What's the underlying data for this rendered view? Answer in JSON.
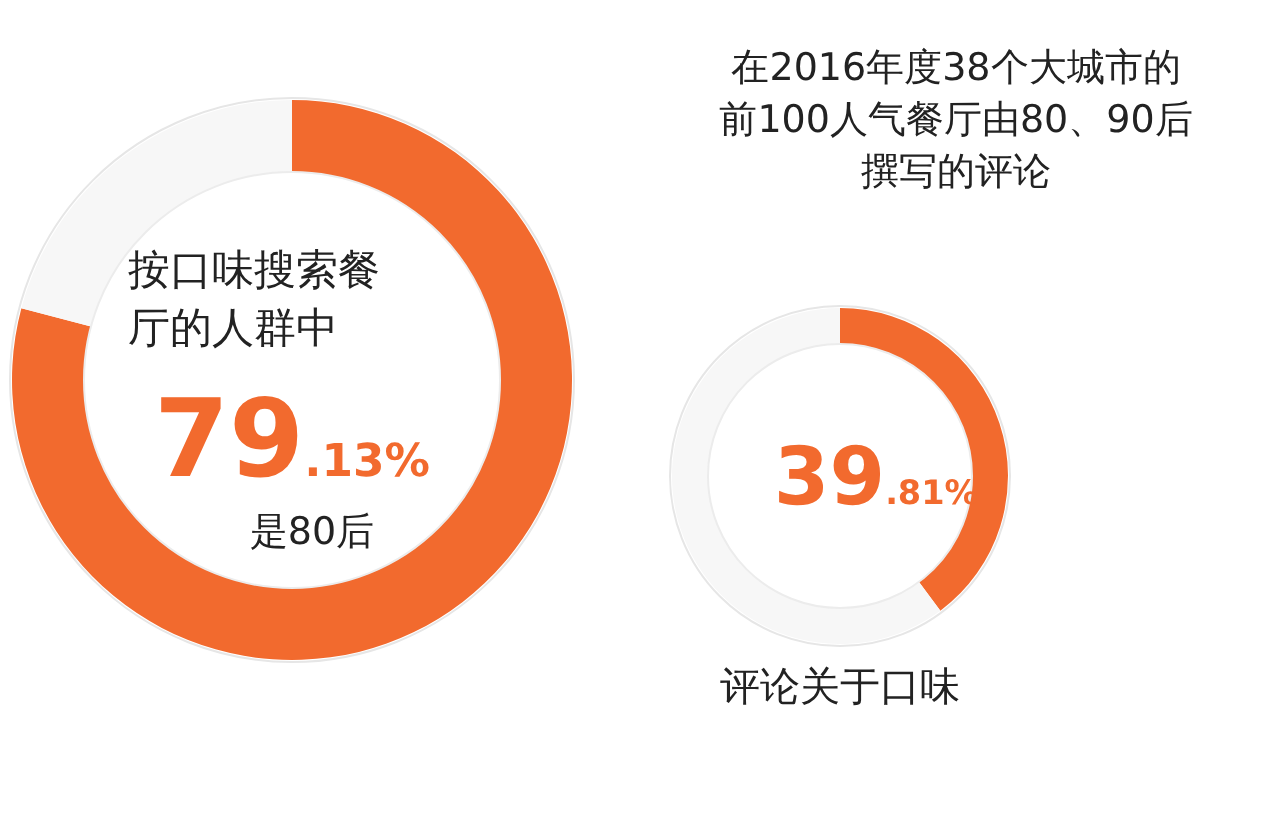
{
  "chart_data": [
    {
      "type": "donut",
      "title": "按口味搜索餐厅的人群中",
      "categories": [
        null,
        null
      ],
      "values": [
        79.13,
        20.87
      ],
      "colors": [
        "#f26a2e",
        "#f7f7f7"
      ],
      "value_labels": [
        "79.13%",
        null
      ],
      "annotations": [
        "是80后"
      ]
    },
    {
      "type": "donut",
      "title": "在2016年度38个大城市的前100人气餐厅由80、90后撰写的评论",
      "categories": [
        null,
        null
      ],
      "values": [
        39.81,
        60.19
      ],
      "colors": [
        "#f26a2e",
        "#f7f7f7"
      ],
      "value_labels": [
        "39.81%",
        null
      ],
      "annotations": [
        "评论关于口味"
      ]
    }
  ]
}
